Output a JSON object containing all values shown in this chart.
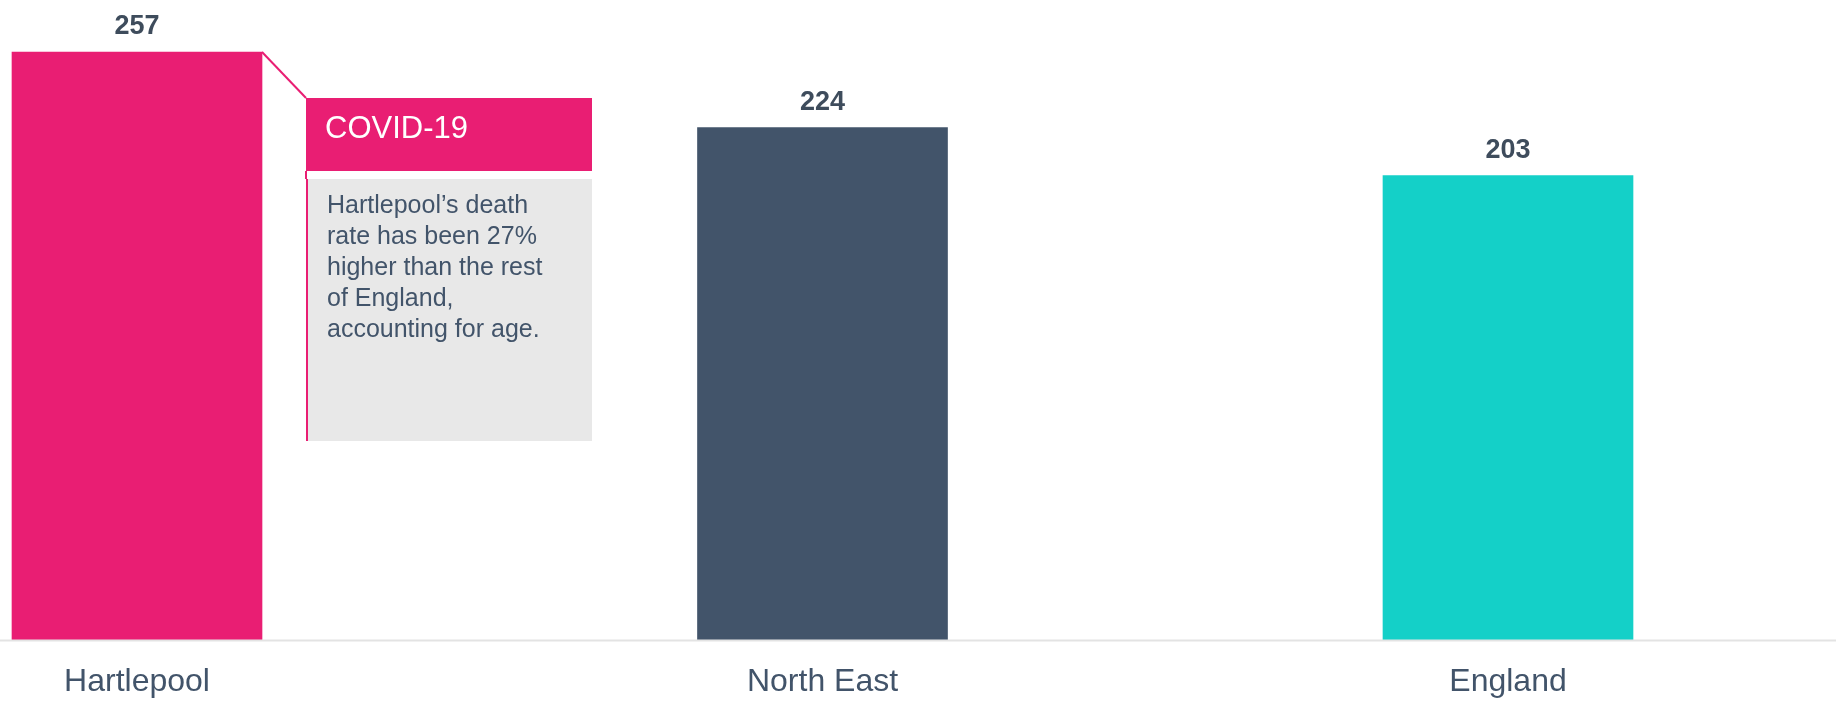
{
  "chart_data": {
    "type": "bar",
    "categories": [
      "Hartlepool",
      "North East",
      "England"
    ],
    "values": [
      257,
      224,
      203
    ],
    "colors": [
      "#e91e73",
      "#42546a",
      "#14d0c8"
    ],
    "data_labels": true,
    "grid": false,
    "legend": false,
    "tick_labels": "x",
    "annotations": [
      "COVID-19",
      "Hartlepool’s death rate has been 27% higher than the rest of England, accounting for age."
    ]
  }
}
